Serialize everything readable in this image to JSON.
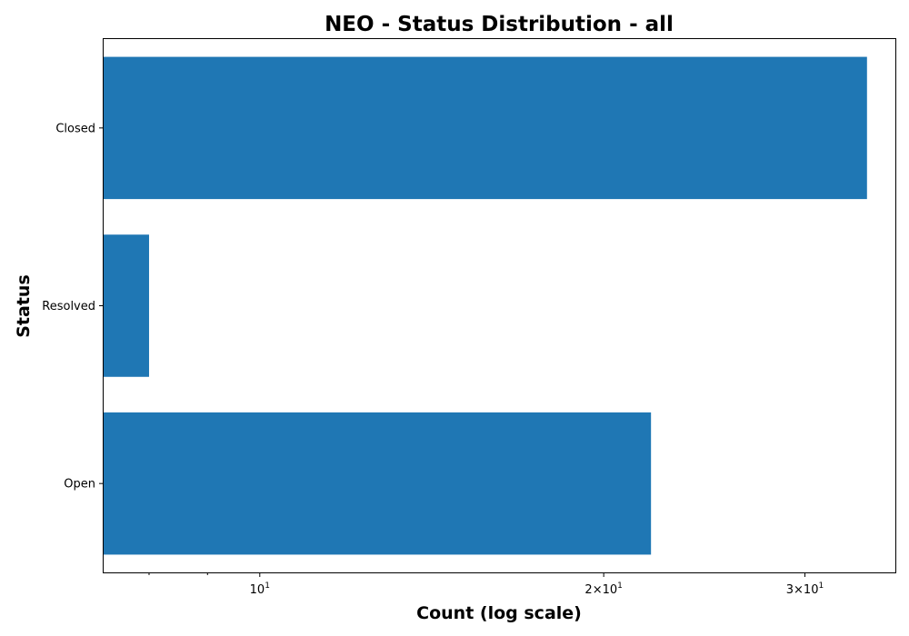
{
  "chart_data": {
    "type": "bar",
    "orientation": "horizontal",
    "title": "NEO - Status Distribution - all",
    "xlabel": "Count (log scale)",
    "ylabel": "Status",
    "x_scale": "log",
    "xlim": [
      7.3,
      36
    ],
    "categories": [
      "Closed",
      "Resolved",
      "Open"
    ],
    "values": [
      34,
      8,
      22
    ],
    "x_major_ticks": [
      {
        "value": 10,
        "base": "10",
        "exp": "1",
        "coef": ""
      },
      {
        "value": 20,
        "base": "10",
        "exp": "1",
        "coef": "2"
      },
      {
        "value": 30,
        "base": "10",
        "exp": "1",
        "coef": "3"
      }
    ],
    "x_minor_ticks": [
      8,
      9
    ],
    "bar_color": "#1f77b4",
    "grid": false,
    "legend": "none"
  }
}
